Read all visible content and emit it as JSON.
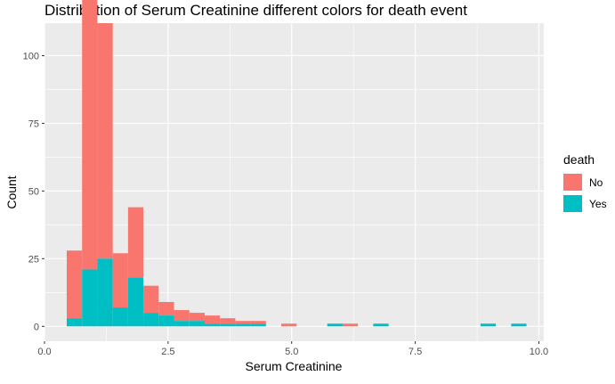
{
  "chart_data": {
    "type": "bar",
    "title": "Distribution of Serum Creatinine different colors for death event",
    "xlabel": "Serum Creatinine",
    "ylabel": "Count",
    "xlim": [
      0,
      10.1
    ],
    "ylim": [
      -5.5,
      112
    ],
    "x_ticks": [
      0,
      2.5,
      5,
      7.5,
      10
    ],
    "x_tick_labels": [
      "0.0",
      "2.5",
      "5.0",
      "7.5",
      "10.0"
    ],
    "y_ticks": [
      0,
      25,
      50,
      75,
      100
    ],
    "y_tick_labels": [
      "0",
      "25",
      "50",
      "75",
      "100"
    ],
    "grid": true,
    "background": "#ebebeb",
    "legend": {
      "title": "death",
      "position": "right",
      "entries": [
        {
          "label": "No",
          "color": "#f8766d"
        },
        {
          "label": "Yes",
          "color": "#00bfc4"
        }
      ]
    },
    "bin_width": 0.31,
    "bin_starts": [
      0.45,
      0.76,
      1.07,
      1.38,
      1.69,
      2.0,
      2.31,
      2.62,
      2.93,
      3.24,
      3.55,
      3.86,
      4.17,
      4.79,
      5.72,
      6.03,
      6.65,
      8.82,
      9.44
    ],
    "series": [
      {
        "name": "No",
        "color": "#f8766d",
        "values": [
          25,
          106,
          87,
          20,
          26,
          10,
          5,
          4,
          3,
          3,
          2,
          1,
          1,
          1,
          0,
          1,
          0,
          0,
          0
        ]
      },
      {
        "name": "Yes",
        "color": "#00bfc4",
        "values": [
          3,
          21,
          25,
          7,
          18,
          5,
          4,
          2,
          2,
          1,
          1,
          1,
          1,
          0,
          1,
          0,
          1,
          1,
          1
        ]
      }
    ]
  }
}
